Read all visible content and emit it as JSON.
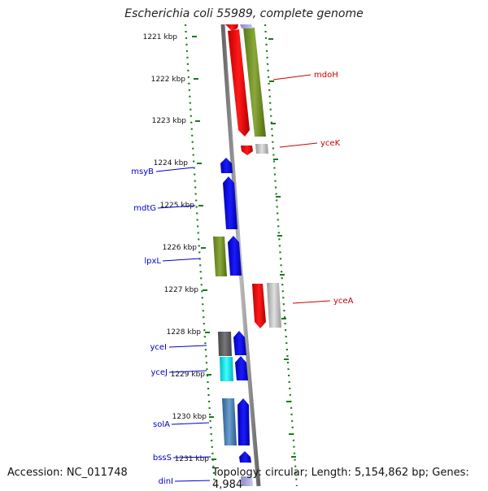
{
  "title": "Escherichia coli 55989, complete genome",
  "footer": {
    "accession": "Accession: NC_011748",
    "summary": "Topology: circular; Length: 5,154,862 bp; Genes: 4,984"
  },
  "ticks": [
    "1221 kbp",
    "1222 kbp",
    "1223 kbp",
    "1224 kbp",
    "1225 kbp",
    "1226 kbp",
    "1227 kbp",
    "1228 kbp",
    "1229 kbp",
    "1230 kbp",
    "1231 kbp"
  ],
  "gene_labels": {
    "mdoH": "mdoH",
    "yceK": "yceK",
    "msyB": "msyB",
    "mdtG": "mdtG",
    "lpxL": "lpxL",
    "yceA": "yceA",
    "yceI": "yceI",
    "yceJ": "yceJ",
    "solA": "solA",
    "bssS": "bssS",
    "dinI": "dinI"
  },
  "colors": {
    "forward_label": "#0000cc",
    "reverse_label": "#cc0000",
    "tick_dash": "#1a7a1a",
    "backbone": "#888888",
    "blue": "#0a0ae0",
    "red": "#ee0000",
    "olive": "#6b8a22",
    "gray": "#bbbbbb",
    "darkgray": "#666666",
    "cyan": "#00e0e0",
    "steel": "#4a7fb5"
  }
}
